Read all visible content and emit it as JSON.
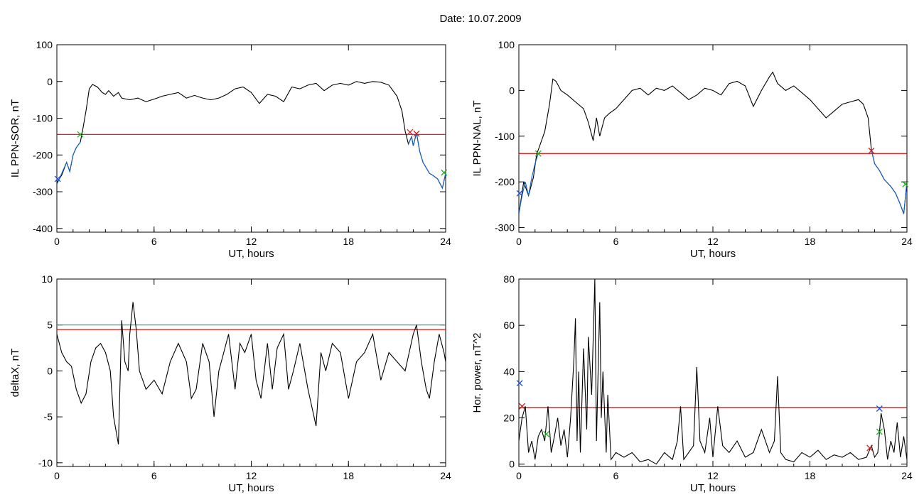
{
  "header": {
    "title": "Date:  10.07.2009"
  },
  "chart_data": [
    {
      "type": "line",
      "ylabel": "IL PPN-SOR, nT",
      "xlabel": "UT, hours",
      "xlim": [
        0,
        24
      ],
      "ylim": [
        -410,
        100
      ],
      "xticks": [
        0,
        6,
        12,
        18,
        24
      ],
      "yticks": [
        100,
        0,
        -100,
        -200,
        -300,
        -400
      ],
      "grid": false,
      "threshold_lines": [
        {
          "value": -144,
          "color": "#e00000"
        }
      ],
      "series": [
        {
          "color": "#000000",
          "x": [
            0,
            0.3,
            0.6,
            0.8,
            1.0,
            1.2,
            1.45,
            1.6,
            1.8,
            2.0,
            2.2,
            2.5,
            2.8,
            3.0,
            3.2,
            3.5,
            3.8,
            4.0,
            4.5,
            5.0,
            5.5,
            6.0,
            6.5,
            7.0,
            7.5,
            8.0,
            8.5,
            9.0,
            9.5,
            10.0,
            10.5,
            11.0,
            11.5,
            12.0,
            12.5,
            13.0,
            13.5,
            14.0,
            14.5,
            15.0,
            15.5,
            16.0,
            16.5,
            17.0,
            17.5,
            18.0,
            18.5,
            19.0,
            19.5,
            20.0,
            20.5,
            21.0,
            21.3,
            21.5,
            21.7,
            21.9,
            22.0,
            22.2,
            22.4,
            22.6,
            22.8,
            23.0,
            23.2,
            23.5,
            23.8,
            24.0
          ],
          "values": [
            -275,
            -255,
            -220,
            -245,
            -200,
            -180,
            -165,
            -130,
            -80,
            -20,
            -8,
            -15,
            -30,
            -35,
            -25,
            -40,
            -30,
            -45,
            -50,
            -45,
            -55,
            -48,
            -40,
            -35,
            -30,
            -45,
            -38,
            -45,
            -50,
            -45,
            -35,
            -20,
            -15,
            -30,
            -60,
            -35,
            -40,
            -55,
            -15,
            -20,
            -10,
            -5,
            -25,
            -10,
            -5,
            -10,
            0,
            -5,
            0,
            -2,
            -10,
            -40,
            -80,
            -135,
            -170,
            -150,
            -175,
            -140,
            -190,
            -220,
            -235,
            -250,
            -255,
            -265,
            -290,
            -250
          ]
        },
        {
          "color": "#1060c8",
          "x": [
            0,
            0.2,
            0.4,
            0.6,
            0.8,
            1.0,
            1.2,
            1.45,
            21.7,
            21.9,
            22.0,
            22.2,
            22.4,
            22.6,
            22.8,
            23.0,
            23.2,
            23.5,
            23.8,
            24.0
          ],
          "values": [
            -280,
            -260,
            -240,
            -220,
            -245,
            -200,
            -180,
            -165,
            -170,
            -150,
            -175,
            -140,
            -190,
            -220,
            -235,
            -250,
            -255,
            -265,
            -290,
            -250
          ]
        }
      ],
      "markers": [
        {
          "x": 1.45,
          "y": -144,
          "color": "#22b022"
        },
        {
          "x": 21.8,
          "y": -138,
          "color": "#d02020"
        },
        {
          "x": 22.2,
          "y": -142,
          "color": "#d02020"
        },
        {
          "x": 23.9,
          "y": -248,
          "color": "#22b022"
        },
        {
          "x": 0.05,
          "y": -265,
          "color": "#2050d0"
        }
      ]
    },
    {
      "type": "line",
      "ylabel": "IL PPN-NAL, nT",
      "xlabel": "UT, hours",
      "xlim": [
        0,
        24
      ],
      "ylim": [
        -310,
        100
      ],
      "xticks": [
        0,
        6,
        12,
        18,
        24
      ],
      "yticks": [
        100,
        0,
        -100,
        -200,
        -300
      ],
      "grid": false,
      "threshold_lines": [
        {
          "value": -138,
          "color": "#e00000"
        }
      ],
      "series": [
        {
          "color": "#000000",
          "x": [
            0,
            0.3,
            0.6,
            0.9,
            1.1,
            1.3,
            1.6,
            1.9,
            2.1,
            2.3,
            2.6,
            3.0,
            3.5,
            4.0,
            4.3,
            4.6,
            4.8,
            5.0,
            5.3,
            5.6,
            6.0,
            6.5,
            7.0,
            7.5,
            8.0,
            8.5,
            9.0,
            9.5,
            10.0,
            10.5,
            11.0,
            11.5,
            12.0,
            12.5,
            13.0,
            13.5,
            14.0,
            14.5,
            15.0,
            15.5,
            15.7,
            16.0,
            16.5,
            17.0,
            17.5,
            18.0,
            18.5,
            19.0,
            19.5,
            20.0,
            20.5,
            21.0,
            21.3,
            21.6,
            21.8,
            22.0,
            22.3,
            22.6,
            23.0,
            23.3,
            23.6,
            23.8,
            24.0
          ],
          "values": [
            -270,
            -200,
            -230,
            -190,
            -140,
            -120,
            -90,
            -30,
            25,
            20,
            0,
            -10,
            -25,
            -40,
            -70,
            -110,
            -60,
            -100,
            -60,
            -50,
            -40,
            -20,
            0,
            5,
            -10,
            5,
            0,
            10,
            -5,
            -20,
            -10,
            5,
            0,
            -10,
            15,
            20,
            10,
            -35,
            0,
            30,
            40,
            15,
            0,
            10,
            -5,
            -20,
            -40,
            -60,
            -45,
            -30,
            -25,
            -20,
            -30,
            -60,
            -130,
            -160,
            -175,
            -195,
            -210,
            -225,
            -250,
            -270,
            -200
          ]
        },
        {
          "color": "#1060c8",
          "x": [
            0,
            0.2,
            0.4,
            0.6,
            0.8,
            1.0,
            1.2,
            21.8,
            22.0,
            22.3,
            22.6,
            23.0,
            23.3,
            23.6,
            23.8,
            24.0
          ],
          "values": [
            -270,
            -230,
            -200,
            -230,
            -190,
            -160,
            -138,
            -130,
            -160,
            -175,
            -195,
            -210,
            -225,
            -250,
            -270,
            -200
          ]
        }
      ],
      "markers": [
        {
          "x": 1.2,
          "y": -138,
          "color": "#22b022"
        },
        {
          "x": 21.8,
          "y": -132,
          "color": "#d02020"
        },
        {
          "x": 23.9,
          "y": -205,
          "color": "#22b022"
        },
        {
          "x": 0.05,
          "y": -225,
          "color": "#2050d0"
        }
      ]
    },
    {
      "type": "line",
      "ylabel": "deltaX, nT",
      "xlabel": "UT, hours",
      "xlim": [
        0,
        24
      ],
      "ylim": [
        -10.4,
        10
      ],
      "xticks": [
        0,
        6,
        12,
        18,
        24
      ],
      "yticks": [
        10,
        5,
        0,
        -5,
        -10
      ],
      "grid": false,
      "threshold_lines": [
        {
          "value": 5.0,
          "color": "#20a0a0"
        },
        {
          "value": 4.5,
          "color": "#e00000"
        }
      ],
      "series": [
        {
          "color": "#000000",
          "x": [
            0,
            0.3,
            0.6,
            0.9,
            1.2,
            1.5,
            1.8,
            2.1,
            2.4,
            2.7,
            3.0,
            3.3,
            3.5,
            3.8,
            4.0,
            4.2,
            4.4,
            4.5,
            4.7,
            4.9,
            5.1,
            5.5,
            6.0,
            6.5,
            7.0,
            7.5,
            8.0,
            8.3,
            8.6,
            9.0,
            9.4,
            9.7,
            10.0,
            10.3,
            10.6,
            11.0,
            11.3,
            11.6,
            12.0,
            12.3,
            12.6,
            13.0,
            13.3,
            13.6,
            14.0,
            14.3,
            14.6,
            15.0,
            15.5,
            16.0,
            16.3,
            16.6,
            17.0,
            17.5,
            18.0,
            18.5,
            19.0,
            19.5,
            20.0,
            20.5,
            21.0,
            21.5,
            22.0,
            22.2,
            22.5,
            22.8,
            23.0,
            23.3,
            23.6,
            23.9,
            24.0
          ],
          "values": [
            4,
            2,
            1,
            0.5,
            -2,
            -3.5,
            -2.5,
            1,
            2.5,
            3,
            2,
            0,
            -5,
            -8,
            5.5,
            1,
            0,
            4,
            7.5,
            4.5,
            0,
            -2,
            -1,
            -2.5,
            1,
            3,
            1,
            -3,
            -2,
            3,
            1,
            -5,
            0,
            2,
            4,
            -2,
            3,
            2,
            4,
            -1,
            -3,
            3,
            -2,
            2.5,
            4,
            -2,
            0,
            3,
            -2,
            -6,
            2,
            0,
            3,
            2,
            -3,
            1,
            2,
            4,
            -1,
            2,
            1,
            0,
            4,
            5,
            1,
            -2,
            -3,
            1,
            4,
            2,
            1
          ]
        }
      ],
      "markers": []
    },
    {
      "type": "line",
      "ylabel": "Hor. power, nT^2",
      "xlabel": "UT, hours",
      "xlim": [
        0,
        24
      ],
      "ylim": [
        -1,
        80
      ],
      "xticks": [
        0,
        6,
        12,
        18,
        24
      ],
      "yticks": [
        80,
        60,
        40,
        20,
        0
      ],
      "grid": false,
      "threshold_lines": [
        {
          "value": 24.5,
          "color": "#e00000"
        }
      ],
      "series": [
        {
          "color": "#000000",
          "x": [
            0,
            0.2,
            0.4,
            0.6,
            0.8,
            1.0,
            1.2,
            1.4,
            1.6,
            1.8,
            2.0,
            2.2,
            2.4,
            2.6,
            2.8,
            3.0,
            3.2,
            3.4,
            3.5,
            3.6,
            3.7,
            3.8,
            4.0,
            4.2,
            4.3,
            4.5,
            4.7,
            4.8,
            5.0,
            5.1,
            5.2,
            5.4,
            5.5,
            5.7,
            6.0,
            6.5,
            7.0,
            7.5,
            8.0,
            8.5,
            9.0,
            9.5,
            9.8,
            10.0,
            10.2,
            10.5,
            10.8,
            11.0,
            11.2,
            11.5,
            11.8,
            12.0,
            12.3,
            12.6,
            13.0,
            13.5,
            14.0,
            14.5,
            15.0,
            15.5,
            15.8,
            16.0,
            16.2,
            16.5,
            17.0,
            17.5,
            18.0,
            18.5,
            19.0,
            19.5,
            20.0,
            20.5,
            21.0,
            21.5,
            21.8,
            22.0,
            22.2,
            22.4,
            22.6,
            22.8,
            23.0,
            23.2,
            23.4,
            23.6,
            23.8,
            24.0
          ],
          "values": [
            10,
            20,
            25,
            5,
            10,
            2,
            12,
            15,
            10,
            25,
            5,
            12,
            20,
            8,
            15,
            3,
            20,
            45,
            63,
            10,
            40,
            5,
            50,
            15,
            55,
            30,
            80,
            10,
            70,
            20,
            40,
            5,
            30,
            2,
            5,
            3,
            5,
            1,
            2,
            0,
            5,
            2,
            10,
            25,
            2,
            5,
            8,
            42,
            10,
            5,
            20,
            3,
            25,
            8,
            5,
            10,
            3,
            5,
            15,
            5,
            10,
            38,
            5,
            2,
            1,
            5,
            3,
            6,
            2,
            4,
            3,
            5,
            2,
            3,
            8,
            3,
            5,
            22,
            15,
            2,
            10,
            5,
            18,
            3,
            12,
            2
          ]
        }
      ],
      "markers": [
        {
          "x": 21.7,
          "y": 7,
          "color": "#d02020"
        },
        {
          "x": 22.3,
          "y": 24,
          "color": "#2050d0"
        },
        {
          "x": 22.3,
          "y": 14,
          "color": "#22b022"
        },
        {
          "x": 1.7,
          "y": 13,
          "color": "#22b022"
        },
        {
          "x": 0.05,
          "y": 35,
          "color": "#2050d0"
        },
        {
          "x": 0.2,
          "y": 25,
          "color": "#d02020"
        }
      ]
    }
  ]
}
